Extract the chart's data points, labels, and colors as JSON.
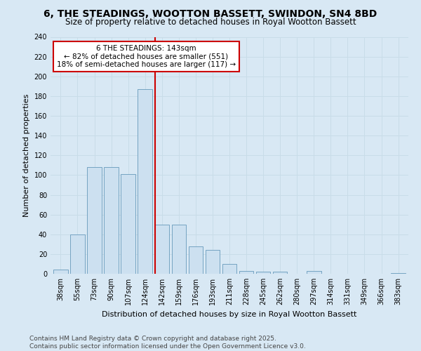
{
  "title": "6, THE STEADINGS, WOOTTON BASSETT, SWINDON, SN4 8BD",
  "subtitle": "Size of property relative to detached houses in Royal Wootton Bassett",
  "xlabel": "Distribution of detached houses by size in Royal Wootton Bassett",
  "ylabel": "Number of detached properties",
  "bin_labels": [
    "38sqm",
    "55sqm",
    "73sqm",
    "90sqm",
    "107sqm",
    "124sqm",
    "142sqm",
    "159sqm",
    "176sqm",
    "193sqm",
    "211sqm",
    "228sqm",
    "245sqm",
    "262sqm",
    "280sqm",
    "297sqm",
    "314sqm",
    "331sqm",
    "349sqm",
    "366sqm",
    "383sqm"
  ],
  "bar_heights": [
    4,
    40,
    108,
    108,
    101,
    187,
    50,
    50,
    28,
    24,
    10,
    3,
    2,
    2,
    0,
    3,
    0,
    0,
    0,
    0,
    1
  ],
  "bar_color": "#cce0f0",
  "bar_edge_color": "#6699bb",
  "vline_x_index": 6,
  "annotation_line1": "6 THE STEADINGS: 143sqm",
  "annotation_line2": "← 82% of detached houses are smaller (551)",
  "annotation_line3": "18% of semi-detached houses are larger (117) →",
  "annotation_box_color": "#ffffff",
  "annotation_box_edge": "#cc0000",
  "vline_color": "#cc0000",
  "grid_color": "#c8dce8",
  "background_color": "#d8e8f4",
  "plot_bg_color": "#d8e8f4",
  "footer_text": "Contains HM Land Registry data © Crown copyright and database right 2025.\nContains public sector information licensed under the Open Government Licence v3.0.",
  "ylim": [
    0,
    240
  ],
  "yticks": [
    0,
    20,
    40,
    60,
    80,
    100,
    120,
    140,
    160,
    180,
    200,
    220,
    240
  ],
  "title_fontsize": 10,
  "subtitle_fontsize": 8.5,
  "axis_label_fontsize": 8,
  "tick_fontsize": 7,
  "annotation_fontsize": 7.5,
  "footer_fontsize": 6.5
}
